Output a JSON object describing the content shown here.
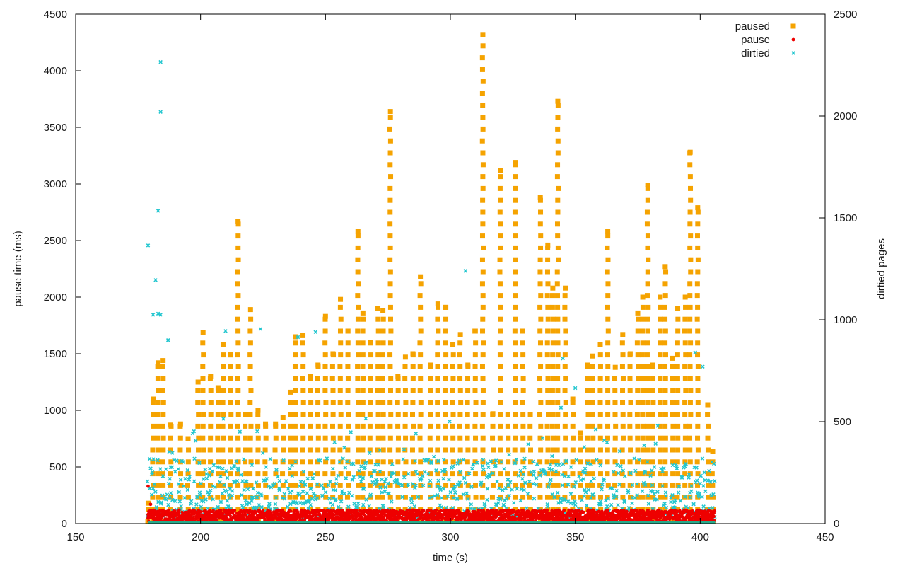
{
  "chart_data": {
    "type": "scatter",
    "title": "",
    "xlabel": "time (s)",
    "ylabel": "pause time (ms)",
    "y2label": "dirtied pages",
    "xlim": [
      150,
      450
    ],
    "ylim": [
      0,
      4500
    ],
    "y2lim": [
      0,
      2500
    ],
    "x_ticks": [
      150,
      200,
      250,
      300,
      350,
      400,
      450
    ],
    "y_ticks": [
      0,
      500,
      1000,
      1500,
      2000,
      2500,
      3000,
      3500,
      4000,
      4500
    ],
    "y2_ticks": [
      0,
      500,
      1000,
      1500,
      2000,
      2500
    ],
    "grid": false,
    "legend_position": "top-right",
    "colors": {
      "paused": "#f5a300",
      "pause": "#ee0000",
      "dirtied": "#22c6cf",
      "baseline": "#2aa98a"
    },
    "data_range": [
      179,
      406
    ],
    "series": [
      {
        "name": "paused",
        "axis": "y1",
        "marker": "square",
        "peaks": [
          [
            179,
            180
          ],
          [
            181,
            1100
          ],
          [
            183,
            1420
          ],
          [
            185,
            1440
          ],
          [
            188,
            870
          ],
          [
            192,
            880
          ],
          [
            195,
            750
          ],
          [
            199,
            1250
          ],
          [
            201,
            1690
          ],
          [
            204,
            1300
          ],
          [
            207,
            1200
          ],
          [
            209,
            1580
          ],
          [
            212,
            1490
          ],
          [
            215,
            2670
          ],
          [
            218,
            960
          ],
          [
            220,
            1890
          ],
          [
            223,
            1000
          ],
          [
            226,
            880
          ],
          [
            230,
            880
          ],
          [
            233,
            940
          ],
          [
            236,
            1160
          ],
          [
            238,
            1650
          ],
          [
            241,
            1660
          ],
          [
            244,
            1300
          ],
          [
            247,
            1400
          ],
          [
            250,
            1830
          ],
          [
            253,
            1500
          ],
          [
            256,
            1980
          ],
          [
            259,
            1700
          ],
          [
            263,
            2580
          ],
          [
            265,
            1860
          ],
          [
            268,
            1600
          ],
          [
            271,
            1900
          ],
          [
            273,
            1880
          ],
          [
            276,
            3640
          ],
          [
            279,
            1300
          ],
          [
            282,
            1470
          ],
          [
            285,
            1500
          ],
          [
            288,
            2180
          ],
          [
            292,
            1400
          ],
          [
            295,
            1940
          ],
          [
            298,
            1910
          ],
          [
            301,
            1580
          ],
          [
            304,
            1670
          ],
          [
            307,
            1400
          ],
          [
            310,
            1700
          ],
          [
            313,
            4320
          ],
          [
            317,
            970
          ],
          [
            320,
            3120
          ],
          [
            323,
            960
          ],
          [
            326,
            3190
          ],
          [
            329,
            1700
          ],
          [
            332,
            960
          ],
          [
            336,
            2880
          ],
          [
            339,
            2460
          ],
          [
            341,
            2080
          ],
          [
            343,
            3730
          ],
          [
            346,
            2080
          ],
          [
            349,
            1100
          ],
          [
            352,
            800
          ],
          [
            355,
            1400
          ],
          [
            357,
            1480
          ],
          [
            360,
            1580
          ],
          [
            363,
            2580
          ],
          [
            366,
            1380
          ],
          [
            369,
            1670
          ],
          [
            372,
            1500
          ],
          [
            375,
            1860
          ],
          [
            377,
            2000
          ],
          [
            379,
            2990
          ],
          [
            381,
            1400
          ],
          [
            384,
            2000
          ],
          [
            386,
            2270
          ],
          [
            389,
            1460
          ],
          [
            391,
            1900
          ],
          [
            394,
            2000
          ],
          [
            396,
            3280
          ],
          [
            399,
            2790
          ],
          [
            403,
            1050
          ],
          [
            405,
            640
          ]
        ]
      },
      {
        "name": "pause",
        "axis": "y1",
        "marker": "circle",
        "typical_range": [
          20,
          120
        ],
        "outliers": [
          [
            179,
            330
          ],
          [
            180,
            170
          ],
          [
            181,
            110
          ]
        ]
      },
      {
        "name": "dirtied",
        "axis": "y2",
        "marker": "x",
        "typical_range": [
          30,
          320
        ],
        "outliers": [
          [
            179,
            1365
          ],
          [
            181,
            1025
          ],
          [
            182,
            1195
          ],
          [
            183,
            1030
          ],
          [
            183,
            1535
          ],
          [
            184,
            1025
          ],
          [
            184,
            2265
          ],
          [
            184,
            2020
          ],
          [
            187,
            900
          ],
          [
            210,
            945
          ],
          [
            224,
            955
          ],
          [
            239,
            915
          ],
          [
            246,
            940
          ],
          [
            306,
            1240
          ],
          [
            398,
            840
          ],
          [
            401,
            770
          ],
          [
            345,
            810
          ],
          [
            350,
            665
          ]
        ]
      }
    ]
  }
}
